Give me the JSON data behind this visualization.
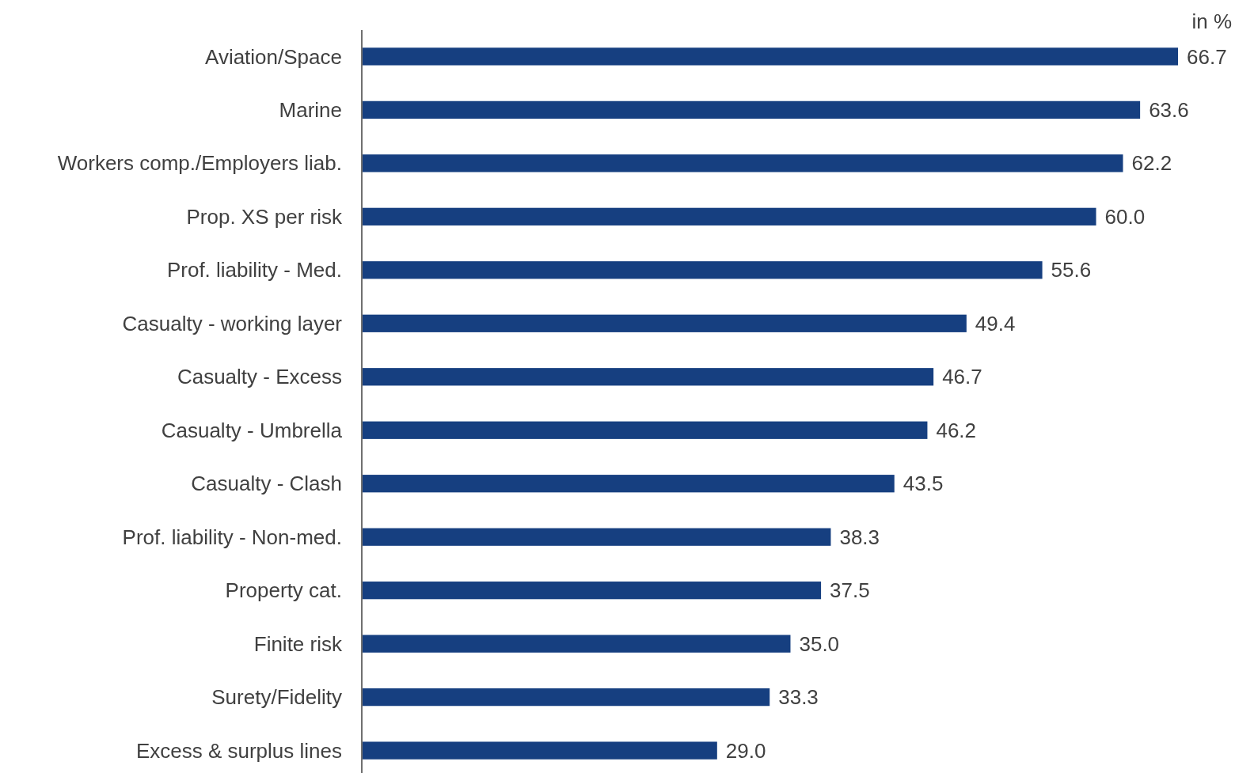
{
  "chart_data": {
    "type": "bar",
    "orientation": "horizontal",
    "categories": [
      "Aviation/Space",
      "Marine",
      "Workers comp./Employers liab.",
      "Prop. XS per risk",
      "Prof. liability - Med.",
      "Casualty - working layer",
      "Casualty - Excess",
      "Casualty - Umbrella",
      "Casualty - Clash",
      "Prof. liability - Non-med.",
      "Property cat.",
      "Finite risk",
      "Surety/Fidelity",
      "Excess & surplus lines"
    ],
    "values": [
      66.7,
      63.6,
      62.2,
      60.0,
      55.6,
      49.4,
      46.7,
      46.2,
      43.5,
      38.3,
      37.5,
      35.0,
      33.3,
      29.0
    ],
    "color": "#163f80",
    "data_labels": true,
    "value_labels": [
      "66.7",
      "63.6",
      "62.2",
      "60.0",
      "55.6",
      "49.4",
      "46.7",
      "46.2",
      "43.5",
      "38.3",
      "37.5",
      "35.0",
      "33.3",
      "29.0"
    ],
    "annotations": [
      "in %"
    ]
  }
}
